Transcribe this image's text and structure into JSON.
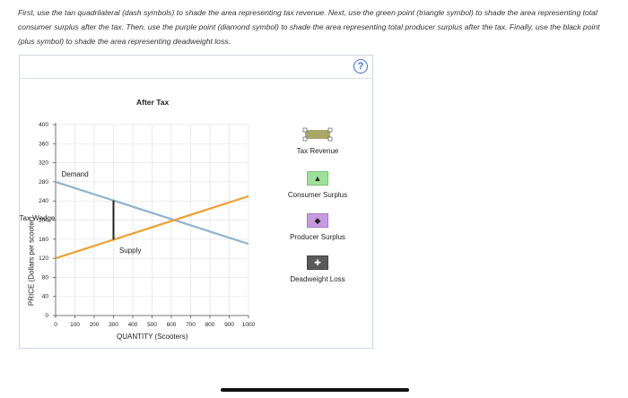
{
  "instructions": "First, use the tan quadrilateral (dash symbols) to shade the area representing tax revenue. Next, use the green point (triangle symbol) to shade the area representing total consumer surplus after the tax. Then, use the purple point (diamond symbol) to shade the area representing total producer surplus after the tax. Finally, use the black point (plus symbol) to shade the area representing deadweight loss.",
  "help_label": "?",
  "chart_data": {
    "type": "line",
    "title": "After Tax",
    "xlabel": "QUANTITY (Scooters)",
    "ylabel": "PRICE (Dollars per scooter)",
    "xlim": [
      0,
      1000
    ],
    "ylim": [
      0,
      400
    ],
    "xticks": [
      0,
      100,
      200,
      300,
      400,
      500,
      600,
      700,
      800,
      900,
      1000
    ],
    "yticks": [
      0,
      40,
      80,
      120,
      160,
      200,
      240,
      280,
      320,
      360,
      400
    ],
    "grid": true,
    "series": [
      {
        "name": "Demand",
        "color": "#8fb3cc",
        "x": [
          0,
          1000
        ],
        "y": [
          280,
          150
        ]
      },
      {
        "name": "Supply",
        "color": "#f0a030",
        "x": [
          0,
          1000
        ],
        "y": [
          120,
          250
        ]
      }
    ],
    "tax_wedge": {
      "label": "Tax Wedge",
      "x": 300,
      "y_low": 159,
      "y_high": 241
    }
  },
  "tools": {
    "tax_revenue": {
      "label": "Tax Revenue",
      "color": "#a8a868",
      "icon": "dash-quadrilateral-icon"
    },
    "consumer_surplus": {
      "label": "Consumer Surplus",
      "color": "#9fe09a",
      "icon": "triangle-icon",
      "symbol": "▲"
    },
    "producer_surplus": {
      "label": "Producer Surplus",
      "color": "#c79ae0",
      "icon": "diamond-icon",
      "symbol": "◆"
    },
    "deadweight_loss": {
      "label": "Deadweight Loss",
      "color": "#5a5a5a",
      "icon": "plus-icon",
      "symbol": "✚"
    }
  }
}
